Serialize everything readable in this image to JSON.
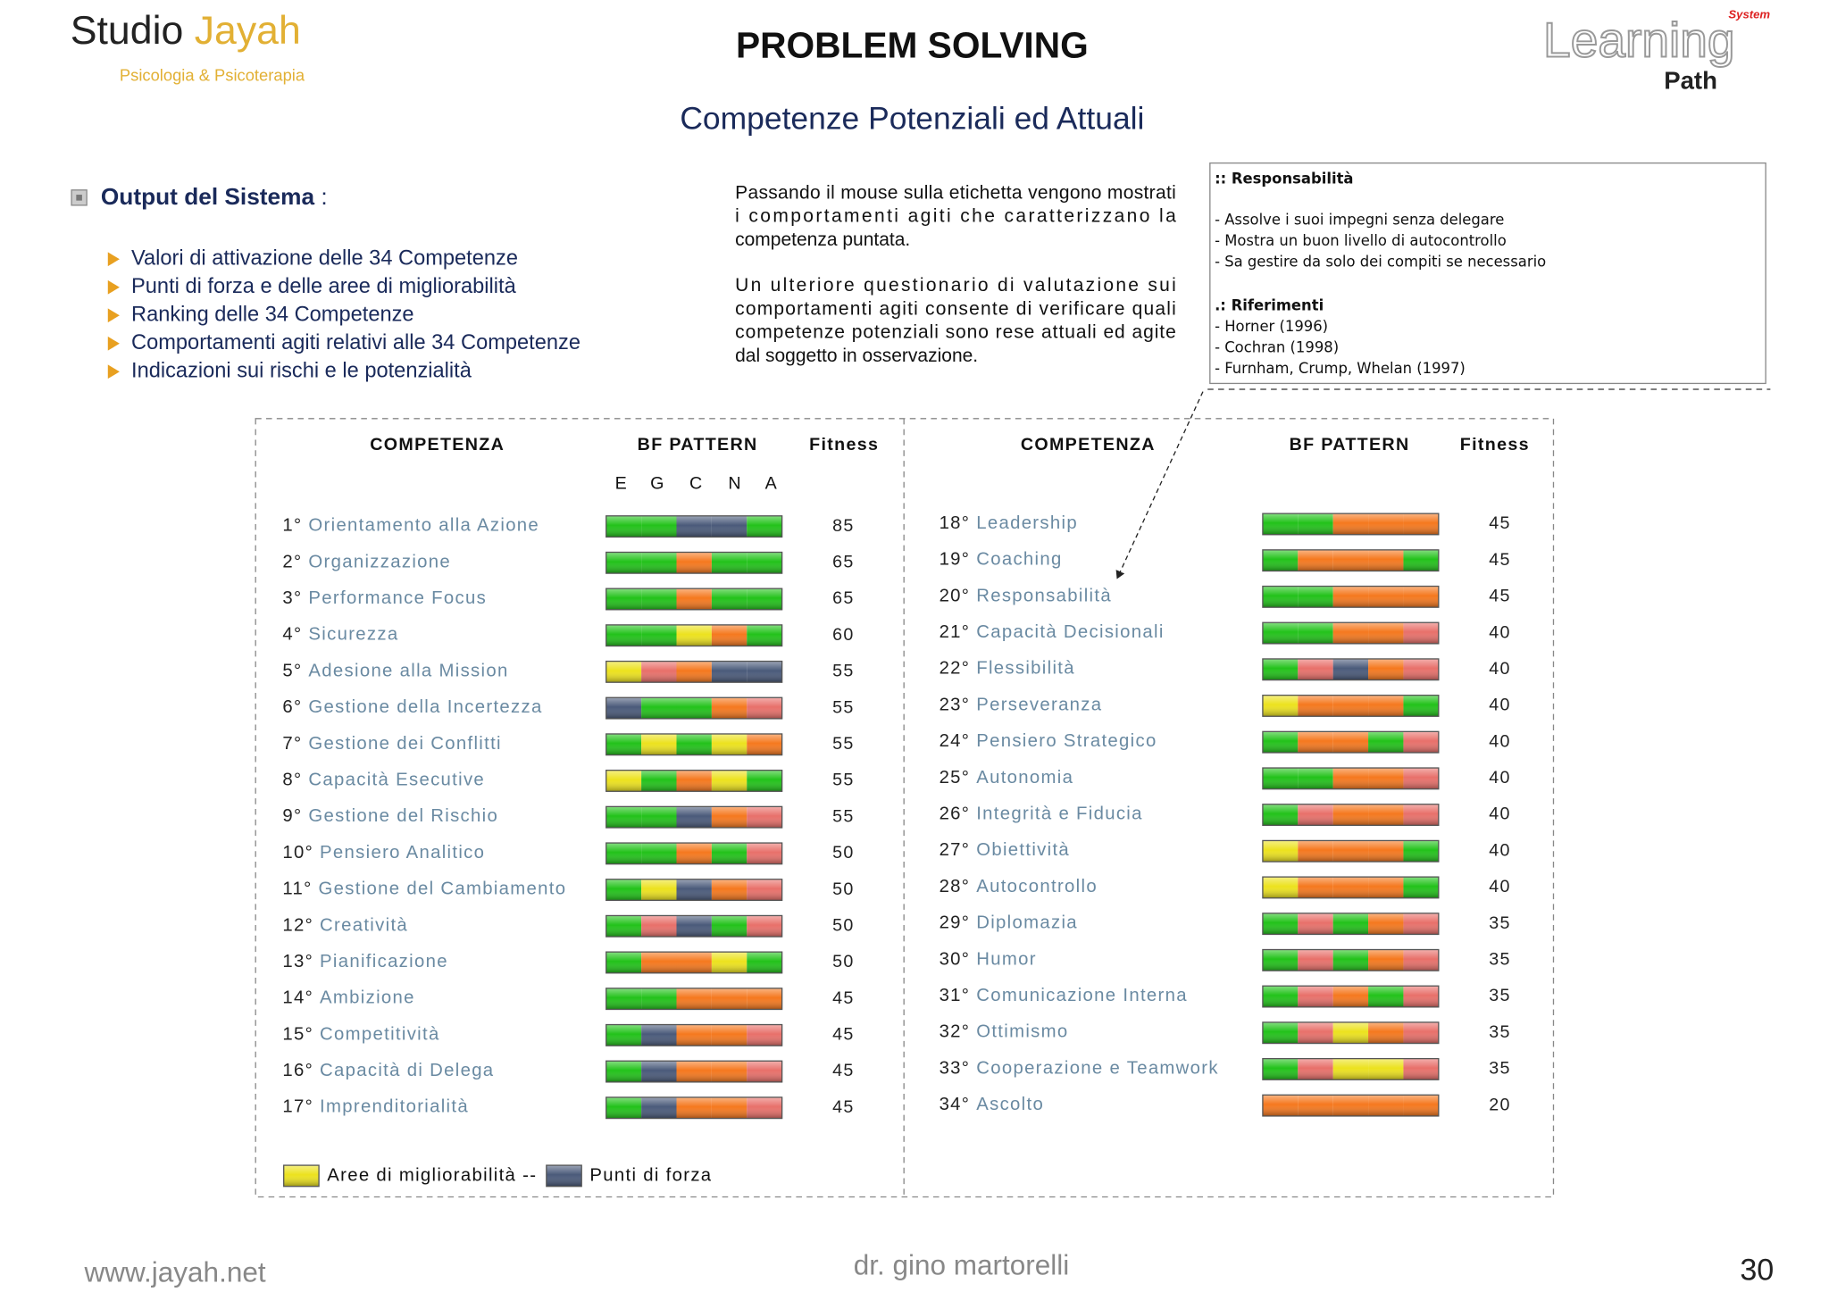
{
  "header": {
    "logo_a": "Studio",
    "logo_b": "Jayah",
    "logo_sub": "Psicologia & Psicoterapia",
    "title": "PROBLEM SOLVING",
    "subtitle": "Competenze Potenziali ed Attuali",
    "brand": "Learning",
    "brand_sub": "Path",
    "brand_tag": "System"
  },
  "intro": {
    "heading": "Output del Sistema",
    "heading_suffix": ":",
    "bullets": [
      "Valori di attivazione delle 34 Competenze",
      "Punti di forza e delle aree di migliorabilità",
      "Ranking delle 34 Competenze",
      "Comportamenti agiti relativi alle 34 Competenze",
      "Indicazioni sui rischi e le potenzialità"
    ]
  },
  "description": [
    [
      "Passando il mouse sulla etichetta vengono mostrati",
      "i comportamenti agiti che caratterizzano la",
      "competenza puntata."
    ],
    [
      "Un ulteriore questionario di valutazione sui",
      "comportamenti agiti consente di verificare quali",
      "competenze potenziali sono rese attuali ed agite",
      "dal soggetto in osservazione."
    ]
  ],
  "tooltip": {
    "title": ":: Responsabilità",
    "lines": [
      "- Assolve i suoi impegni senza delegare",
      "- Mostra un buon livello di autocontrollo",
      "- Sa gestire da solo dei compiti se necessario"
    ],
    "ref_title": ".: Riferimenti",
    "refs": [
      "- Horner (1996)",
      "- Cochran (1998)",
      "- Furnham, Crump, Whelan (1997)"
    ]
  },
  "table": {
    "headers": [
      "COMPETENZA",
      "BF PATTERN",
      "Fitness"
    ],
    "pattern_labels": [
      "E",
      "G",
      "C",
      "N",
      "A"
    ],
    "palette": {
      "g": "#22c21a",
      "o": "#f5781e",
      "y": "#ece21e",
      "r": "#e8706a",
      "b": "#4a5a7a"
    },
    "rows": [
      {
        "rank": "1°",
        "name": "Orientamento alla Azione",
        "pattern": [
          "g",
          "g",
          "b",
          "b",
          "g"
        ],
        "fitness": 85
      },
      {
        "rank": "2°",
        "name": "Organizzazione",
        "pattern": [
          "g",
          "g",
          "o",
          "g",
          "g"
        ],
        "fitness": 65
      },
      {
        "rank": "3°",
        "name": "Performance Focus",
        "pattern": [
          "g",
          "g",
          "o",
          "g",
          "g"
        ],
        "fitness": 65
      },
      {
        "rank": "4°",
        "name": "Sicurezza",
        "pattern": [
          "g",
          "g",
          "y",
          "o",
          "g"
        ],
        "fitness": 60
      },
      {
        "rank": "5°",
        "name": "Adesione alla Mission",
        "pattern": [
          "y",
          "r",
          "o",
          "b",
          "b"
        ],
        "fitness": 55
      },
      {
        "rank": "6°",
        "name": "Gestione della Incertezza",
        "pattern": [
          "b",
          "g",
          "g",
          "o",
          "r"
        ],
        "fitness": 55
      },
      {
        "rank": "7°",
        "name": "Gestione dei Conflitti",
        "pattern": [
          "g",
          "y",
          "g",
          "y",
          "o"
        ],
        "fitness": 55
      },
      {
        "rank": "8°",
        "name": "Capacità Esecutive",
        "pattern": [
          "y",
          "g",
          "o",
          "y",
          "g"
        ],
        "fitness": 55
      },
      {
        "rank": "9°",
        "name": "Gestione del Rischio",
        "pattern": [
          "g",
          "g",
          "b",
          "o",
          "r"
        ],
        "fitness": 55
      },
      {
        "rank": "10°",
        "name": "Pensiero Analitico",
        "pattern": [
          "g",
          "g",
          "o",
          "g",
          "r"
        ],
        "fitness": 50
      },
      {
        "rank": "11°",
        "name": "Gestione del Cambiamento",
        "pattern": [
          "g",
          "y",
          "b",
          "o",
          "r"
        ],
        "fitness": 50
      },
      {
        "rank": "12°",
        "name": "Creatività",
        "pattern": [
          "g",
          "r",
          "b",
          "g",
          "r"
        ],
        "fitness": 50
      },
      {
        "rank": "13°",
        "name": "Pianificazione",
        "pattern": [
          "g",
          "o",
          "o",
          "y",
          "g"
        ],
        "fitness": 50
      },
      {
        "rank": "14°",
        "name": "Ambizione",
        "pattern": [
          "g",
          "g",
          "o",
          "o",
          "o"
        ],
        "fitness": 45
      },
      {
        "rank": "15°",
        "name": "Competitività",
        "pattern": [
          "g",
          "b",
          "o",
          "o",
          "r"
        ],
        "fitness": 45
      },
      {
        "rank": "16°",
        "name": "Capacità di Delega",
        "pattern": [
          "g",
          "b",
          "o",
          "o",
          "r"
        ],
        "fitness": 45
      },
      {
        "rank": "17°",
        "name": "Imprenditorialità",
        "pattern": [
          "g",
          "b",
          "o",
          "o",
          "r"
        ],
        "fitness": 45
      },
      {
        "rank": "18°",
        "name": "Leadership",
        "pattern": [
          "g",
          "g",
          "o",
          "o",
          "o"
        ],
        "fitness": 45
      },
      {
        "rank": "19°",
        "name": "Coaching",
        "pattern": [
          "g",
          "o",
          "o",
          "o",
          "g"
        ],
        "fitness": 45
      },
      {
        "rank": "20°",
        "name": "Responsabilità",
        "pattern": [
          "g",
          "g",
          "o",
          "o",
          "o"
        ],
        "fitness": 45
      },
      {
        "rank": "21°",
        "name": "Capacità Decisionali",
        "pattern": [
          "g",
          "g",
          "o",
          "o",
          "r"
        ],
        "fitness": 40
      },
      {
        "rank": "22°",
        "name": "Flessibilità",
        "pattern": [
          "g",
          "r",
          "b",
          "o",
          "r"
        ],
        "fitness": 40
      },
      {
        "rank": "23°",
        "name": "Perseveranza",
        "pattern": [
          "y",
          "o",
          "o",
          "o",
          "g"
        ],
        "fitness": 40
      },
      {
        "rank": "24°",
        "name": "Pensiero Strategico",
        "pattern": [
          "g",
          "o",
          "o",
          "g",
          "r"
        ],
        "fitness": 40
      },
      {
        "rank": "25°",
        "name": "Autonomia",
        "pattern": [
          "g",
          "g",
          "o",
          "o",
          "r"
        ],
        "fitness": 40
      },
      {
        "rank": "26°",
        "name": "Integrità e Fiducia",
        "pattern": [
          "g",
          "r",
          "o",
          "o",
          "r"
        ],
        "fitness": 40
      },
      {
        "rank": "27°",
        "name": "Obiettività",
        "pattern": [
          "y",
          "o",
          "o",
          "o",
          "g"
        ],
        "fitness": 40
      },
      {
        "rank": "28°",
        "name": "Autocontrollo",
        "pattern": [
          "y",
          "o",
          "o",
          "o",
          "g"
        ],
        "fitness": 40
      },
      {
        "rank": "29°",
        "name": "Diplomazia",
        "pattern": [
          "g",
          "r",
          "g",
          "o",
          "r"
        ],
        "fitness": 35
      },
      {
        "rank": "30°",
        "name": "Humor",
        "pattern": [
          "g",
          "r",
          "g",
          "o",
          "r"
        ],
        "fitness": 35
      },
      {
        "rank": "31°",
        "name": "Comunicazione Interna",
        "pattern": [
          "g",
          "r",
          "o",
          "g",
          "r"
        ],
        "fitness": 35
      },
      {
        "rank": "32°",
        "name": "Ottimismo",
        "pattern": [
          "g",
          "r",
          "y",
          "o",
          "r"
        ],
        "fitness": 35
      },
      {
        "rank": "33°",
        "name": "Cooperazione e Teamwork",
        "pattern": [
          "g",
          "r",
          "y",
          "y",
          "r"
        ],
        "fitness": 35
      },
      {
        "rank": "34°",
        "name": "Ascolto",
        "pattern": [
          "o",
          "o",
          "o",
          "o",
          "o"
        ],
        "fitness": 20
      }
    ],
    "legend": [
      {
        "label": "Aree di migliorabilità --",
        "color": "y"
      },
      {
        "label": "Punti di forza",
        "color": "b"
      }
    ]
  },
  "footer": {
    "site": "www.jayah.net",
    "author": "dr. gino martorelli",
    "page": "30"
  }
}
